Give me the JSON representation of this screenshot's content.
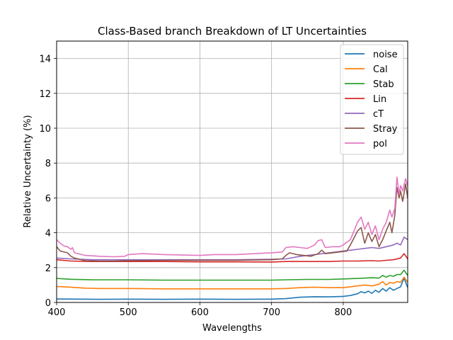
{
  "chart_data": {
    "type": "line",
    "title": "Class-Based branch Breakdown of LT Uncertainties",
    "xlabel": "Wavelengths",
    "ylabel": "Relative Uncertainty (%)",
    "xlim": [
      400,
      890
    ],
    "ylim": [
      0,
      15
    ],
    "xticks": [
      400,
      500,
      600,
      700,
      800
    ],
    "yticks": [
      0,
      2,
      4,
      6,
      8,
      10,
      12,
      14
    ],
    "grid": true,
    "legend_position": "upper right",
    "series": [
      {
        "name": "noise",
        "color": "#1f77b4",
        "points": [
          [
            400,
            0.2
          ],
          [
            430,
            0.19
          ],
          [
            460,
            0.18
          ],
          [
            500,
            0.19
          ],
          [
            550,
            0.18
          ],
          [
            600,
            0.19
          ],
          [
            650,
            0.18
          ],
          [
            700,
            0.19
          ],
          [
            720,
            0.22
          ],
          [
            740,
            0.3
          ],
          [
            760,
            0.33
          ],
          [
            780,
            0.32
          ],
          [
            800,
            0.35
          ],
          [
            810,
            0.4
          ],
          [
            820,
            0.5
          ],
          [
            825,
            0.62
          ],
          [
            830,
            0.55
          ],
          [
            835,
            0.65
          ],
          [
            840,
            0.52
          ],
          [
            845,
            0.7
          ],
          [
            850,
            0.58
          ],
          [
            855,
            0.8
          ],
          [
            860,
            0.65
          ],
          [
            865,
            0.85
          ],
          [
            870,
            0.7
          ],
          [
            875,
            0.8
          ],
          [
            880,
            0.9
          ],
          [
            885,
            1.4
          ],
          [
            890,
            0.85
          ]
        ]
      },
      {
        "name": "Cal",
        "color": "#ff7f0e",
        "points": [
          [
            400,
            0.92
          ],
          [
            420,
            0.88
          ],
          [
            440,
            0.82
          ],
          [
            460,
            0.8
          ],
          [
            500,
            0.8
          ],
          [
            550,
            0.78
          ],
          [
            600,
            0.78
          ],
          [
            650,
            0.78
          ],
          [
            700,
            0.78
          ],
          [
            720,
            0.8
          ],
          [
            740,
            0.85
          ],
          [
            760,
            0.88
          ],
          [
            780,
            0.85
          ],
          [
            800,
            0.85
          ],
          [
            810,
            0.9
          ],
          [
            820,
            0.95
          ],
          [
            830,
            1.0
          ],
          [
            840,
            0.95
          ],
          [
            850,
            1.05
          ],
          [
            855,
            1.2
          ],
          [
            860,
            1.0
          ],
          [
            865,
            1.15
          ],
          [
            870,
            1.1
          ],
          [
            875,
            1.2
          ],
          [
            880,
            1.15
          ],
          [
            885,
            1.45
          ],
          [
            890,
            1.15
          ]
        ]
      },
      {
        "name": "Stab",
        "color": "#2ca02c",
        "points": [
          [
            400,
            1.38
          ],
          [
            420,
            1.33
          ],
          [
            450,
            1.3
          ],
          [
            500,
            1.3
          ],
          [
            550,
            1.28
          ],
          [
            600,
            1.28
          ],
          [
            650,
            1.28
          ],
          [
            700,
            1.28
          ],
          [
            720,
            1.3
          ],
          [
            750,
            1.32
          ],
          [
            780,
            1.32
          ],
          [
            800,
            1.35
          ],
          [
            820,
            1.38
          ],
          [
            840,
            1.42
          ],
          [
            850,
            1.4
          ],
          [
            855,
            1.55
          ],
          [
            860,
            1.45
          ],
          [
            865,
            1.55
          ],
          [
            870,
            1.5
          ],
          [
            875,
            1.6
          ],
          [
            880,
            1.6
          ],
          [
            885,
            1.85
          ],
          [
            890,
            1.55
          ]
        ]
      },
      {
        "name": "Lin",
        "color": "#d62728",
        "points": [
          [
            400,
            2.45
          ],
          [
            420,
            2.38
          ],
          [
            450,
            2.35
          ],
          [
            500,
            2.35
          ],
          [
            550,
            2.35
          ],
          [
            600,
            2.33
          ],
          [
            650,
            2.33
          ],
          [
            700,
            2.32
          ],
          [
            720,
            2.35
          ],
          [
            750,
            2.35
          ],
          [
            780,
            2.35
          ],
          [
            800,
            2.38
          ],
          [
            820,
            2.38
          ],
          [
            840,
            2.4
          ],
          [
            850,
            2.38
          ],
          [
            860,
            2.42
          ],
          [
            870,
            2.45
          ],
          [
            880,
            2.55
          ],
          [
            885,
            2.8
          ],
          [
            890,
            2.5
          ]
        ]
      },
      {
        "name": "cT",
        "color": "#9467bd",
        "points": [
          [
            400,
            2.55
          ],
          [
            420,
            2.5
          ],
          [
            450,
            2.45
          ],
          [
            500,
            2.45
          ],
          [
            550,
            2.45
          ],
          [
            600,
            2.45
          ],
          [
            650,
            2.45
          ],
          [
            700,
            2.48
          ],
          [
            720,
            2.5
          ],
          [
            740,
            2.65
          ],
          [
            760,
            2.75
          ],
          [
            780,
            2.85
          ],
          [
            800,
            2.95
          ],
          [
            810,
            3.0
          ],
          [
            820,
            3.05
          ],
          [
            830,
            3.1
          ],
          [
            840,
            3.15
          ],
          [
            850,
            3.1
          ],
          [
            860,
            3.2
          ],
          [
            870,
            3.3
          ],
          [
            875,
            3.4
          ],
          [
            880,
            3.3
          ],
          [
            885,
            3.75
          ],
          [
            890,
            3.6
          ]
        ]
      },
      {
        "name": "Stray",
        "color": "#8c564b",
        "points": [
          [
            400,
            3.2
          ],
          [
            405,
            2.95
          ],
          [
            415,
            2.85
          ],
          [
            420,
            2.65
          ],
          [
            425,
            2.55
          ],
          [
            440,
            2.4
          ],
          [
            460,
            2.38
          ],
          [
            480,
            2.38
          ],
          [
            500,
            2.4
          ],
          [
            550,
            2.42
          ],
          [
            600,
            2.42
          ],
          [
            650,
            2.42
          ],
          [
            700,
            2.45
          ],
          [
            715,
            2.5
          ],
          [
            720,
            2.7
          ],
          [
            725,
            2.85
          ],
          [
            735,
            2.75
          ],
          [
            745,
            2.7
          ],
          [
            755,
            2.65
          ],
          [
            765,
            2.8
          ],
          [
            770,
            3.0
          ],
          [
            775,
            2.8
          ],
          [
            785,
            2.85
          ],
          [
            795,
            2.9
          ],
          [
            805,
            2.95
          ],
          [
            810,
            3.3
          ],
          [
            815,
            3.7
          ],
          [
            820,
            4.1
          ],
          [
            825,
            4.3
          ],
          [
            830,
            3.4
          ],
          [
            835,
            4.0
          ],
          [
            840,
            3.5
          ],
          [
            845,
            3.9
          ],
          [
            850,
            3.2
          ],
          [
            855,
            3.6
          ],
          [
            860,
            4.1
          ],
          [
            865,
            4.6
          ],
          [
            868,
            4.0
          ],
          [
            872,
            5.0
          ],
          [
            875,
            6.6
          ],
          [
            878,
            6.0
          ],
          [
            880,
            6.4
          ],
          [
            883,
            5.8
          ],
          [
            887,
            6.8
          ],
          [
            890,
            6.0
          ]
        ]
      },
      {
        "name": "pol",
        "color": "#e377c2",
        "points": [
          [
            400,
            3.6
          ],
          [
            405,
            3.4
          ],
          [
            410,
            3.25
          ],
          [
            415,
            3.2
          ],
          [
            420,
            3.05
          ],
          [
            422,
            3.15
          ],
          [
            425,
            2.85
          ],
          [
            440,
            2.7
          ],
          [
            460,
            2.65
          ],
          [
            480,
            2.62
          ],
          [
            495,
            2.65
          ],
          [
            500,
            2.75
          ],
          [
            520,
            2.8
          ],
          [
            550,
            2.75
          ],
          [
            600,
            2.7
          ],
          [
            620,
            2.75
          ],
          [
            650,
            2.75
          ],
          [
            700,
            2.85
          ],
          [
            715,
            2.9
          ],
          [
            720,
            3.15
          ],
          [
            730,
            3.2
          ],
          [
            740,
            3.15
          ],
          [
            750,
            3.1
          ],
          [
            760,
            3.3
          ],
          [
            765,
            3.55
          ],
          [
            770,
            3.6
          ],
          [
            775,
            3.15
          ],
          [
            785,
            3.2
          ],
          [
            795,
            3.2
          ],
          [
            800,
            3.3
          ],
          [
            810,
            3.6
          ],
          [
            815,
            4.1
          ],
          [
            820,
            4.6
          ],
          [
            825,
            4.9
          ],
          [
            830,
            4.2
          ],
          [
            835,
            4.6
          ],
          [
            840,
            3.9
          ],
          [
            845,
            4.4
          ],
          [
            850,
            3.6
          ],
          [
            855,
            4.2
          ],
          [
            860,
            4.6
          ],
          [
            865,
            5.3
          ],
          [
            868,
            4.9
          ],
          [
            872,
            5.4
          ],
          [
            875,
            7.2
          ],
          [
            878,
            6.2
          ],
          [
            880,
            6.7
          ],
          [
            883,
            6.4
          ],
          [
            887,
            7.1
          ],
          [
            890,
            6.7
          ]
        ]
      }
    ]
  }
}
